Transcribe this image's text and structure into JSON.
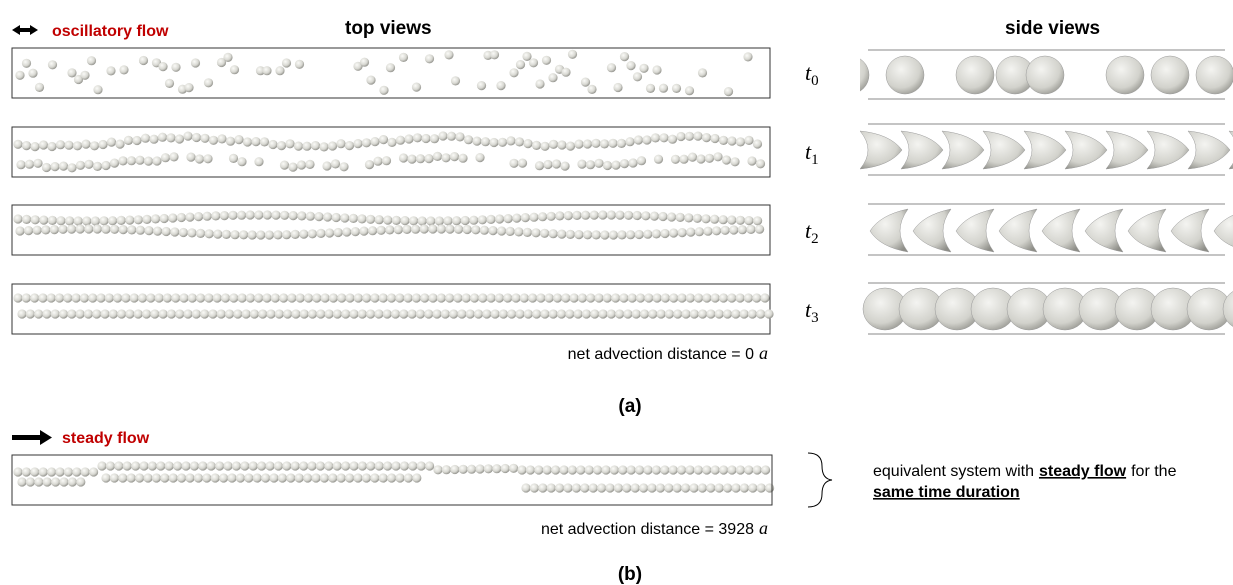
{
  "header": {
    "legend": "oscillatory flow",
    "top_title": "top views",
    "side_title": "side views"
  },
  "time_labels": [
    {
      "symbol": "t",
      "subscript": "0"
    },
    {
      "symbol": "t",
      "subscript": "1"
    },
    {
      "symbol": "t",
      "subscript": "2"
    },
    {
      "symbol": "t",
      "subscript": "3"
    }
  ],
  "panel_a": {
    "distance_text": "net advection distance = 0",
    "distance_unit": "a",
    "label": "(a)"
  },
  "panel_b": {
    "legend": "steady flow",
    "distance_text": "net advection distance = 3928",
    "distance_unit": "a",
    "label": "(b)",
    "note": {
      "line1_a": "equivalent system with",
      "line1_b": "steady flow",
      "line1_c": "for the",
      "line2": "same time duration"
    }
  }
}
